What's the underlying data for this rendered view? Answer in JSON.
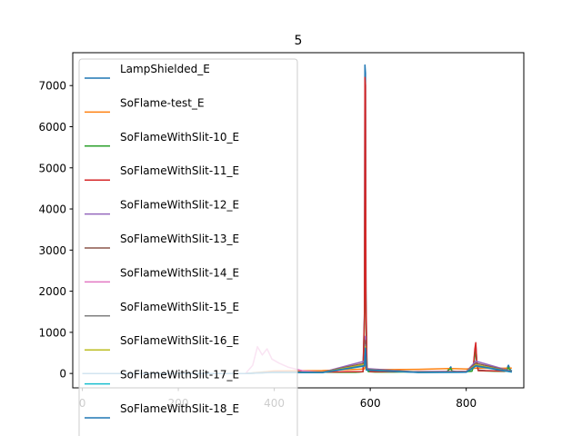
{
  "chart_data": {
    "type": "line",
    "title": "5",
    "xlabel": "",
    "ylabel": "",
    "xlim": [
      -20,
      920
    ],
    "ylim": [
      -350,
      7800
    ],
    "xticks": [
      0,
      200,
      400,
      600,
      800
    ],
    "yticks": [
      0,
      1000,
      2000,
      3000,
      4000,
      5000,
      6000,
      7000
    ],
    "grid": false,
    "legend_position": "upper-left",
    "series": [
      {
        "name": "LampShielded_E",
        "color": "#1f77b4",
        "x": [
          0,
          340,
          360,
          380,
          400,
          430,
          460,
          500,
          540,
          570,
          585,
          588,
          589,
          590,
          591,
          593,
          596,
          610,
          650,
          700,
          740,
          760,
          765,
          768,
          770,
          780,
          800,
          812,
          815,
          818,
          820,
          822,
          825,
          840,
          860,
          880,
          885,
          888,
          892,
          895
        ],
        "y": [
          0,
          0,
          20,
          35,
          40,
          45,
          40,
          35,
          30,
          30,
          45,
          1500,
          7500,
          7300,
          2000,
          150,
          50,
          40,
          40,
          45,
          45,
          45,
          120,
          160,
          60,
          45,
          50,
          60,
          200,
          520,
          680,
          300,
          80,
          70,
          65,
          60,
          120,
          200,
          90,
          60
        ]
      },
      {
        "name": "SoFlame-test_E",
        "color": "#ff7f0e",
        "x": [
          0,
          340,
          400,
          500,
          588,
          590,
          592,
          650,
          700,
          766,
          800,
          820,
          860,
          895
        ],
        "y": [
          0,
          0,
          60,
          70,
          110,
          200,
          100,
          95,
          100,
          120,
          110,
          130,
          125,
          130
        ]
      },
      {
        "name": "SoFlameWithSlit-10_E",
        "color": "#2ca02c",
        "x": [
          0,
          340,
          360,
          380,
          400,
          430,
          460,
          500,
          540,
          570,
          585,
          588,
          589,
          590,
          591,
          593,
          596,
          610,
          650,
          700,
          740,
          760,
          765,
          768,
          770,
          780,
          800,
          812,
          815,
          818,
          820,
          822,
          825,
          840,
          860,
          880,
          885,
          888,
          892,
          895
        ],
        "y": [
          0,
          0,
          15,
          30,
          35,
          40,
          35,
          30,
          28,
          28,
          40,
          1200,
          4550,
          4300,
          1500,
          120,
          45,
          35,
          35,
          40,
          40,
          40,
          100,
          120,
          50,
          40,
          45,
          55,
          160,
          420,
          560,
          250,
          70,
          60,
          55,
          50,
          90,
          140,
          70,
          50
        ]
      },
      {
        "name": "SoFlameWithSlit-11_E",
        "color": "#d62728",
        "x": [
          0,
          340,
          400,
          500,
          585,
          588,
          589,
          590,
          591,
          593,
          600,
          700,
          800,
          815,
          818,
          820,
          822,
          825,
          895
        ],
        "y": [
          0,
          0,
          40,
          35,
          45,
          1400,
          7200,
          7000,
          1800,
          140,
          45,
          40,
          50,
          180,
          600,
          750,
          280,
          70,
          55
        ]
      },
      {
        "name": "SoFlameWithSlit-12_E",
        "color": "#9467bd",
        "x": [
          0,
          340,
          400,
          500,
          588,
          590,
          592,
          700,
          800,
          820,
          895
        ],
        "y": [
          0,
          0,
          35,
          30,
          300,
          900,
          120,
          35,
          45,
          300,
          50
        ]
      },
      {
        "name": "SoFlameWithSlit-13_E",
        "color": "#8c564b",
        "x": [
          0,
          340,
          400,
          500,
          588,
          590,
          592,
          700,
          800,
          820,
          895
        ],
        "y": [
          0,
          0,
          30,
          28,
          250,
          800,
          100,
          30,
          40,
          250,
          45
        ]
      },
      {
        "name": "SoFlameWithSlit-14_E",
        "color": "#e377c2",
        "x": [
          0,
          340,
          355,
          365,
          375,
          385,
          395,
          410,
          430,
          460,
          500,
          588,
          590,
          592,
          700,
          800,
          820,
          895
        ],
        "y": [
          0,
          0,
          200,
          650,
          450,
          600,
          350,
          250,
          150,
          60,
          30,
          200,
          600,
          90,
          30,
          40,
          200,
          45
        ]
      },
      {
        "name": "SoFlameWithSlit-15_E",
        "color": "#7f7f7f",
        "x": [
          0,
          340,
          400,
          500,
          588,
          590,
          592,
          700,
          800,
          820,
          895
        ],
        "y": [
          0,
          0,
          30,
          25,
          200,
          700,
          90,
          28,
          35,
          200,
          40
        ]
      },
      {
        "name": "SoFlameWithSlit-16_E",
        "color": "#bcbd22",
        "x": [
          0,
          340,
          400,
          500,
          588,
          590,
          592,
          700,
          800,
          820,
          895
        ],
        "y": [
          0,
          0,
          30,
          25,
          220,
          650,
          90,
          28,
          35,
          210,
          40
        ]
      },
      {
        "name": "SoFlameWithSlit-17_E",
        "color": "#17becf",
        "x": [
          0,
          340,
          400,
          500,
          588,
          590,
          592,
          700,
          800,
          820,
          895
        ],
        "y": [
          0,
          0,
          25,
          22,
          180,
          600,
          80,
          25,
          30,
          180,
          35
        ]
      },
      {
        "name": "SoFlameWithSlit-18_E",
        "color": "#1f77b4",
        "x": [
          0,
          340,
          400,
          500,
          588,
          590,
          592,
          700,
          800,
          820,
          895
        ],
        "y": [
          0,
          0,
          28,
          24,
          190,
          620,
          85,
          26,
          32,
          190,
          38
        ]
      }
    ]
  }
}
